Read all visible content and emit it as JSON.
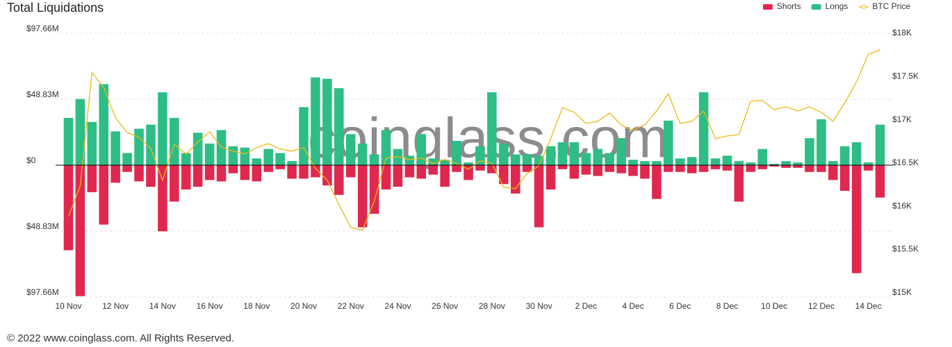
{
  "chart_data": {
    "type": "bar",
    "title": "Total Liquidations",
    "watermark": "coinglass.com",
    "footer": "© 2022 www.coinglass.com. All Rights Reserved.",
    "categories": [
      "10 Nov",
      null,
      null,
      null,
      "12 Nov",
      null,
      null,
      null,
      "14 Nov",
      null,
      null,
      null,
      "16 Nov",
      null,
      null,
      null,
      "18 Nov",
      null,
      null,
      null,
      "20 Nov",
      null,
      null,
      null,
      "22 Nov",
      null,
      null,
      null,
      "24 Nov",
      null,
      null,
      null,
      "26 Nov",
      null,
      null,
      null,
      "28 Nov",
      null,
      null,
      null,
      "30 Nov",
      null,
      null,
      null,
      "2 Dec",
      null,
      null,
      null,
      "4 Dec",
      null,
      null,
      null,
      "6 Dec",
      null,
      null,
      null,
      "8 Dec",
      null,
      null,
      null,
      "10 Dec",
      null,
      null,
      null,
      "12 Dec",
      null,
      null,
      null,
      "14 Dec",
      null
    ],
    "series": [
      {
        "name": "Shorts",
        "color": "#e0284f",
        "values": [
          -63,
          -97,
          -20,
          -44,
          -13,
          -5,
          -12,
          -16,
          -49,
          -27,
          -18,
          -16,
          -11,
          -12,
          -6,
          -11,
          -12,
          -5,
          -3,
          -10,
          -10,
          -9,
          -15,
          -22,
          -9,
          -46,
          -36,
          -18,
          -16,
          -9,
          -10,
          -7,
          -16,
          -5,
          -11,
          -4,
          -6,
          -14,
          -21,
          -5,
          -46,
          -18,
          -3,
          -10,
          -7,
          -8,
          -5,
          -6,
          -8,
          -10,
          -25,
          -5,
          -5,
          -6,
          -5,
          -3,
          -4,
          -27,
          -5,
          -3,
          -1,
          -2,
          -2,
          -5,
          -5,
          -11,
          -19,
          -80,
          -4,
          -24
        ]
      },
      {
        "name": "Longs",
        "color": "#2ebd85",
        "values": [
          35,
          49,
          32,
          60,
          25,
          9,
          27,
          30,
          54,
          35,
          9,
          24,
          16,
          26,
          14,
          13,
          5,
          12,
          9,
          3,
          43,
          65,
          64,
          57,
          23,
          16,
          8,
          26,
          12,
          7,
          23,
          5,
          4,
          18,
          2,
          14,
          54,
          16,
          8,
          8,
          7,
          14,
          17,
          17,
          9,
          12,
          9,
          20,
          4,
          3,
          3,
          33,
          5,
          6,
          54,
          5,
          7,
          3,
          2,
          12,
          1,
          3,
          2,
          20,
          34,
          3,
          14,
          17,
          2,
          30
        ]
      },
      {
        "name": "BTC Price",
        "type": "line",
        "axis": "y2",
        "color": "#e9b913",
        "values": [
          15883,
          16236,
          17543,
          17375,
          17022,
          16853,
          16797,
          16669,
          16300,
          16717,
          16605,
          16741,
          16861,
          16685,
          16637,
          16605,
          16677,
          16725,
          16661,
          16637,
          16677,
          16436,
          16300,
          16019,
          15755,
          15723,
          16059,
          16557,
          16573,
          16541,
          16557,
          16492,
          16541,
          16492,
          16428,
          16525,
          16500,
          16220,
          16204,
          16380,
          16468,
          16781,
          17142,
          17086,
          16957,
          16982,
          17078,
          16941,
          16877,
          16941,
          17102,
          17302,
          16957,
          16982,
          17102,
          16781,
          16813,
          16829,
          17214,
          17222,
          17118,
          17150,
          17102,
          17150,
          17086,
          16982,
          17198,
          17439,
          17759,
          17808
        ]
      }
    ],
    "ylim": [
      -97.66,
      97.66
    ],
    "yticks": [
      {
        "value": -97.66,
        "label": "$97.66M"
      },
      {
        "value": -48.83,
        "label": "$48.83M"
      },
      {
        "value": 0,
        "label": "$0"
      },
      {
        "value": 48.83,
        "label": "$48.83M"
      },
      {
        "value": 97.66,
        "label": "$97.66M"
      }
    ],
    "y2lim": [
      14950,
      18000
    ],
    "y2ticks": [
      {
        "value": 15000,
        "label": "$15K"
      },
      {
        "value": 15500,
        "label": "$15.5K"
      },
      {
        "value": 16000,
        "label": "$16K"
      },
      {
        "value": 16500,
        "label": "$16.5K"
      },
      {
        "value": 17000,
        "label": "$17K"
      },
      {
        "value": 17500,
        "label": "$17.5K"
      },
      {
        "value": 18000,
        "label": "$18K"
      }
    ],
    "grid": true,
    "legend": "top-right"
  }
}
